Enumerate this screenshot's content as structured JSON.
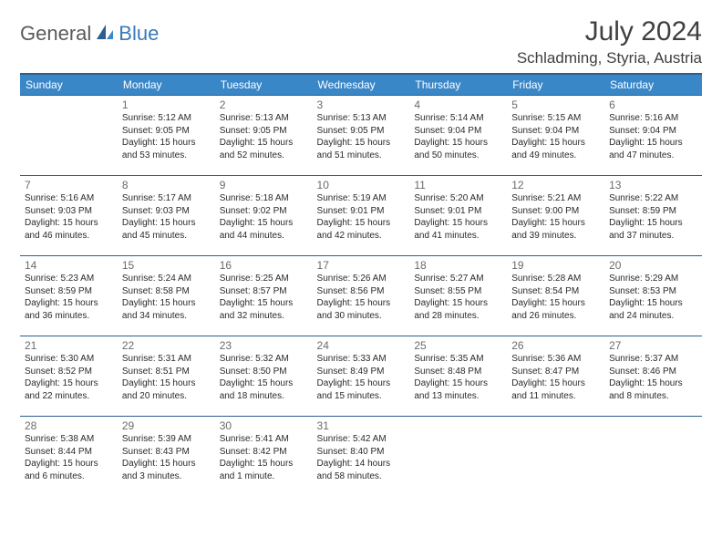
{
  "logo": {
    "part1": "General",
    "part2": "Blue"
  },
  "title": "July 2024",
  "location": "Schladming, Styria, Austria",
  "colors": {
    "header_bg": "#3a87c8",
    "header_border": "#2c5f8d",
    "logo_gray": "#5a5a5a",
    "logo_blue": "#3a7ab8",
    "text": "#2a2a2a",
    "daynum": "#6b6b6b"
  },
  "weekdays": [
    "Sunday",
    "Monday",
    "Tuesday",
    "Wednesday",
    "Thursday",
    "Friday",
    "Saturday"
  ],
  "weeks": [
    [
      null,
      {
        "n": "1",
        "sr": "5:12 AM",
        "ss": "9:05 PM",
        "dl": "15 hours and 53 minutes."
      },
      {
        "n": "2",
        "sr": "5:13 AM",
        "ss": "9:05 PM",
        "dl": "15 hours and 52 minutes."
      },
      {
        "n": "3",
        "sr": "5:13 AM",
        "ss": "9:05 PM",
        "dl": "15 hours and 51 minutes."
      },
      {
        "n": "4",
        "sr": "5:14 AM",
        "ss": "9:04 PM",
        "dl": "15 hours and 50 minutes."
      },
      {
        "n": "5",
        "sr": "5:15 AM",
        "ss": "9:04 PM",
        "dl": "15 hours and 49 minutes."
      },
      {
        "n": "6",
        "sr": "5:16 AM",
        "ss": "9:04 PM",
        "dl": "15 hours and 47 minutes."
      }
    ],
    [
      {
        "n": "7",
        "sr": "5:16 AM",
        "ss": "9:03 PM",
        "dl": "15 hours and 46 minutes."
      },
      {
        "n": "8",
        "sr": "5:17 AM",
        "ss": "9:03 PM",
        "dl": "15 hours and 45 minutes."
      },
      {
        "n": "9",
        "sr": "5:18 AM",
        "ss": "9:02 PM",
        "dl": "15 hours and 44 minutes."
      },
      {
        "n": "10",
        "sr": "5:19 AM",
        "ss": "9:01 PM",
        "dl": "15 hours and 42 minutes."
      },
      {
        "n": "11",
        "sr": "5:20 AM",
        "ss": "9:01 PM",
        "dl": "15 hours and 41 minutes."
      },
      {
        "n": "12",
        "sr": "5:21 AM",
        "ss": "9:00 PM",
        "dl": "15 hours and 39 minutes."
      },
      {
        "n": "13",
        "sr": "5:22 AM",
        "ss": "8:59 PM",
        "dl": "15 hours and 37 minutes."
      }
    ],
    [
      {
        "n": "14",
        "sr": "5:23 AM",
        "ss": "8:59 PM",
        "dl": "15 hours and 36 minutes."
      },
      {
        "n": "15",
        "sr": "5:24 AM",
        "ss": "8:58 PM",
        "dl": "15 hours and 34 minutes."
      },
      {
        "n": "16",
        "sr": "5:25 AM",
        "ss": "8:57 PM",
        "dl": "15 hours and 32 minutes."
      },
      {
        "n": "17",
        "sr": "5:26 AM",
        "ss": "8:56 PM",
        "dl": "15 hours and 30 minutes."
      },
      {
        "n": "18",
        "sr": "5:27 AM",
        "ss": "8:55 PM",
        "dl": "15 hours and 28 minutes."
      },
      {
        "n": "19",
        "sr": "5:28 AM",
        "ss": "8:54 PM",
        "dl": "15 hours and 26 minutes."
      },
      {
        "n": "20",
        "sr": "5:29 AM",
        "ss": "8:53 PM",
        "dl": "15 hours and 24 minutes."
      }
    ],
    [
      {
        "n": "21",
        "sr": "5:30 AM",
        "ss": "8:52 PM",
        "dl": "15 hours and 22 minutes."
      },
      {
        "n": "22",
        "sr": "5:31 AM",
        "ss": "8:51 PM",
        "dl": "15 hours and 20 minutes."
      },
      {
        "n": "23",
        "sr": "5:32 AM",
        "ss": "8:50 PM",
        "dl": "15 hours and 18 minutes."
      },
      {
        "n": "24",
        "sr": "5:33 AM",
        "ss": "8:49 PM",
        "dl": "15 hours and 15 minutes."
      },
      {
        "n": "25",
        "sr": "5:35 AM",
        "ss": "8:48 PM",
        "dl": "15 hours and 13 minutes."
      },
      {
        "n": "26",
        "sr": "5:36 AM",
        "ss": "8:47 PM",
        "dl": "15 hours and 11 minutes."
      },
      {
        "n": "27",
        "sr": "5:37 AM",
        "ss": "8:46 PM",
        "dl": "15 hours and 8 minutes."
      }
    ],
    [
      {
        "n": "28",
        "sr": "5:38 AM",
        "ss": "8:44 PM",
        "dl": "15 hours and 6 minutes."
      },
      {
        "n": "29",
        "sr": "5:39 AM",
        "ss": "8:43 PM",
        "dl": "15 hours and 3 minutes."
      },
      {
        "n": "30",
        "sr": "5:41 AM",
        "ss": "8:42 PM",
        "dl": "15 hours and 1 minute."
      },
      {
        "n": "31",
        "sr": "5:42 AM",
        "ss": "8:40 PM",
        "dl": "14 hours and 58 minutes."
      },
      null,
      null,
      null
    ]
  ],
  "labels": {
    "sunrise": "Sunrise:",
    "sunset": "Sunset:",
    "daylight": "Daylight:"
  }
}
